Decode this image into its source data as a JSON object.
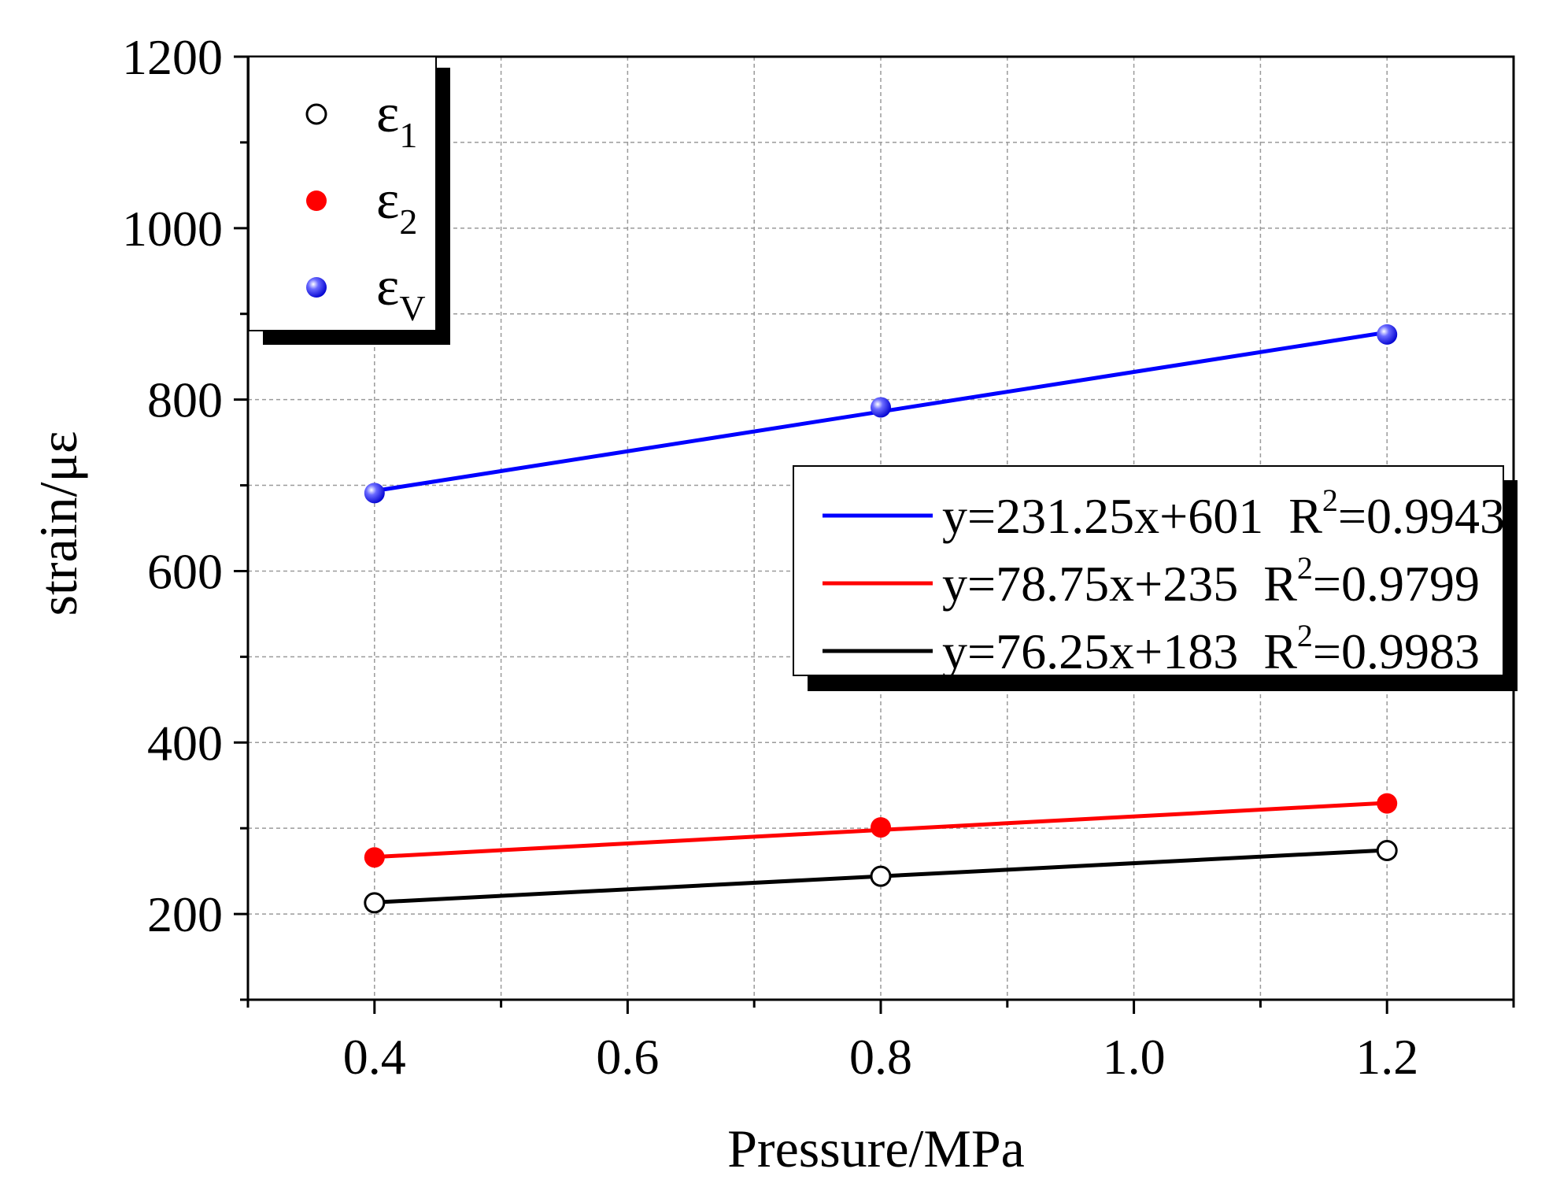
{
  "chart_data": {
    "type": "scatter",
    "xlabel": "Pressure/MPa",
    "ylabel": "strain/με",
    "xlim": [
      0.3,
      1.3
    ],
    "ylim": [
      100,
      1200
    ],
    "x_ticks": [
      0.4,
      0.6,
      0.8,
      1.0,
      1.2
    ],
    "x_tick_labels": [
      "0.4",
      "0.6",
      "0.8",
      "1.0",
      "1.2"
    ],
    "y_ticks": [
      200,
      400,
      600,
      800,
      1000,
      1200
    ],
    "y_tick_labels": [
      "200",
      "400",
      "600",
      "800",
      "1000",
      "1200"
    ],
    "grid": true,
    "legend_position": "top-left",
    "series": [
      {
        "key": "e1",
        "symbol": "ε",
        "subscript": "1",
        "marker": "open-circle",
        "color": "#000000",
        "x": [
          0.4,
          0.8,
          1.2
        ],
        "y": [
          213,
          244,
          274
        ],
        "fit": {
          "slope": 76.25,
          "intercept": 183,
          "r2": "0.9983"
        }
      },
      {
        "key": "e2",
        "symbol": "ε",
        "subscript": "2",
        "marker": "filled-circle",
        "color": "#ff0000",
        "x": [
          0.4,
          0.8,
          1.2
        ],
        "y": [
          266,
          301,
          329
        ],
        "fit": {
          "slope": 78.75,
          "intercept": 235,
          "r2": "0.9799"
        }
      },
      {
        "key": "ev",
        "symbol": "ε",
        "subscript": "V",
        "marker": "sphere",
        "color": "#0000ff",
        "x": [
          0.4,
          0.8,
          1.2
        ],
        "y": [
          691,
          791,
          876
        ],
        "fit": {
          "slope": 231.25,
          "intercept": 601,
          "r2": "0.9943"
        }
      }
    ],
    "fit_legend": {
      "position": "center-right",
      "entries": [
        {
          "color": "#0000ff",
          "equation": "y=231.25x+601",
          "r_label": "R",
          "r_sup": "2",
          "r_value": "=0.9943"
        },
        {
          "color": "#ff0000",
          "equation": "y=78.75x+235",
          "r_label": "R",
          "r_sup": "2",
          "r_value": "=0.9799"
        },
        {
          "color": "#000000",
          "equation": "y=76.25x+183",
          "r_label": "R",
          "r_sup": "2",
          "r_value": "=0.9983"
        }
      ]
    }
  }
}
